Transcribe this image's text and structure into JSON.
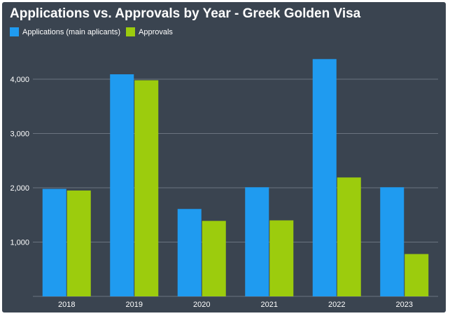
{
  "colors": {
    "background": "#3a4450",
    "grid": "#6b7480",
    "applications": "#1f9bf0",
    "approvals": "#9ccc0d"
  },
  "chart_data": {
    "type": "bar",
    "title": "Applications vs. Approvals by Year - Greek Golden Visa",
    "categories": [
      "2018",
      "2019",
      "2020",
      "2021",
      "2022",
      "2023"
    ],
    "series": [
      {
        "name": "Applications (main aplicants)",
        "values": [
          1980,
          4090,
          1610,
          2010,
          4370,
          2010
        ]
      },
      {
        "name": "Approvals",
        "values": [
          1950,
          3980,
          1390,
          1400,
          2190,
          780
        ]
      }
    ],
    "yticks": [
      "1,000",
      "2,000",
      "3,000",
      "4,000"
    ],
    "ytick_values": [
      1000,
      2000,
      3000,
      4000
    ],
    "ylim": [
      0,
      4500
    ],
    "grid": true,
    "legend_position": "top-left"
  }
}
